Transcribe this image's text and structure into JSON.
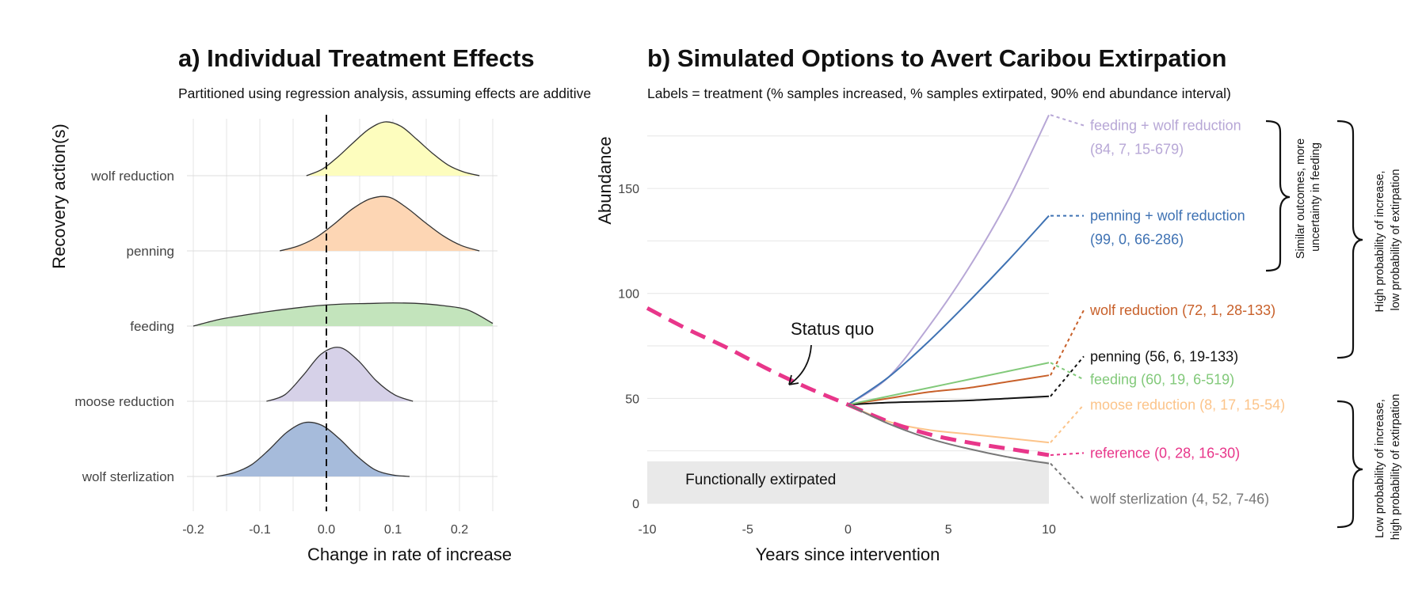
{
  "chart_data": [
    {
      "type": "ridgeline",
      "title": "a) Individual Treatment Effects",
      "subtitle": "Partitioned using regression analysis, assuming effects are additive",
      "xlabel": "Change in rate of increase",
      "ylabel": "Recovery action(s)",
      "xlim": [
        -0.2,
        0.25
      ],
      "xticks": [
        -0.2,
        -0.1,
        0.0,
        0.1,
        0.2
      ],
      "xtick_labels": [
        "-0.2",
        "-0.1",
        "0.0",
        "0.1",
        "0.2"
      ],
      "reference_line": {
        "x": 0,
        "style": "dashed"
      },
      "series": [
        {
          "name": "wolf reduction",
          "color": "#fdfdbe",
          "range": [
            -0.03,
            0.23
          ],
          "peak": 0.1,
          "density": [
            0.0,
            0.12,
            0.35,
            0.62,
            0.87,
            1.0,
            0.92,
            0.68,
            0.42,
            0.2,
            0.07,
            0.0
          ]
        },
        {
          "name": "penning",
          "color": "#fdd6b4",
          "range": [
            -0.07,
            0.23
          ],
          "peak": 0.085,
          "density": [
            0.0,
            0.09,
            0.25,
            0.5,
            0.78,
            0.97,
            1.0,
            0.8,
            0.53,
            0.28,
            0.1,
            0.0
          ]
        },
        {
          "name": "feeding",
          "color": "#c3e4bc",
          "range": [
            -0.2,
            0.25
          ],
          "peak": 0.12,
          "density": [
            0.0,
            0.12,
            0.2,
            0.27,
            0.33,
            0.38,
            0.41,
            0.42,
            0.43,
            0.42,
            0.38,
            0.3,
            0.05
          ]
        },
        {
          "name": "moose reduction",
          "color": "#d6d1e8",
          "range": [
            -0.09,
            0.13
          ],
          "peak": 0.03,
          "density": [
            0.0,
            0.12,
            0.48,
            0.88,
            1.0,
            0.76,
            0.38,
            0.12,
            0.0
          ]
        },
        {
          "name": "wolf sterlization",
          "color": "#a6bbdb",
          "range": [
            -0.165,
            0.125
          ],
          "peak": -0.02,
          "density": [
            0.0,
            0.07,
            0.22,
            0.5,
            0.82,
            1.0,
            0.95,
            0.7,
            0.38,
            0.13,
            0.03,
            0.0
          ]
        }
      ]
    },
    {
      "type": "line",
      "title": "b) Simulated Options to Avert Caribou Extirpation",
      "subtitle": "Labels = treatment (% samples increased, % samples extirpated, 90% end abundance interval)",
      "xlabel": "Years since intervention",
      "ylabel": "Abundance",
      "xlim": [
        -10,
        10
      ],
      "ylim": [
        0,
        190
      ],
      "xticks": [
        -10,
        -5,
        0,
        5,
        10
      ],
      "yticks": [
        0,
        50,
        100,
        150
      ],
      "shaded_region": {
        "label": "Functionally extirpated",
        "y": [
          0,
          20
        ],
        "x": [
          -10,
          10
        ]
      },
      "status_quo": {
        "label": "Status quo",
        "x": [
          -10,
          -8,
          -6,
          -4,
          -2,
          0
        ],
        "y": [
          93,
          83,
          74,
          64,
          55,
          47
        ]
      },
      "series": [
        {
          "name": "feeding + wolf reduction",
          "stats": "(84, 7, 15-679)",
          "color": "#b7a7d6",
          "x": [
            0,
            2,
            4,
            6,
            8,
            10
          ],
          "y": [
            47,
            60,
            84,
            112,
            145,
            185
          ],
          "label_y": 180
        },
        {
          "name": "penning + wolf reduction",
          "stats": "(99, 0, 66-286)",
          "color": "#3f72b3",
          "x": [
            0,
            2,
            4,
            6,
            8,
            10
          ],
          "y": [
            47,
            60,
            77,
            96,
            116,
            137
          ],
          "label_y": 137
        },
        {
          "name": "wolf reduction",
          "stats": "(72, 1, 28-133)",
          "color": "#c8602a",
          "x": [
            0,
            2,
            4,
            6,
            8,
            10
          ],
          "y": [
            47,
            50,
            53,
            55,
            58,
            61
          ],
          "label_y": 92
        },
        {
          "name": "penning",
          "stats": "(56, 6, 19-133)",
          "color": "#111111",
          "x": [
            0,
            2,
            4,
            6,
            8,
            10
          ],
          "y": [
            47,
            48,
            48.5,
            49,
            50,
            51
          ],
          "label_y": 70
        },
        {
          "name": "feeding",
          "stats": "(60, 19, 6-519)",
          "color": "#82c97a",
          "x": [
            0,
            2,
            4,
            6,
            8,
            10
          ],
          "y": [
            47,
            51,
            55,
            59,
            63,
            67
          ],
          "label_y": 59
        },
        {
          "name": "moose reduction",
          "stats": "(8, 17, 15-54)",
          "color": "#fcc48a",
          "x": [
            0,
            2,
            4,
            6,
            8,
            10
          ],
          "y": [
            47,
            39,
            35,
            33,
            31,
            29
          ],
          "label_y": 47
        },
        {
          "name": "reference",
          "stats": "(0, 28, 16-30)",
          "color": "#e8368a",
          "dashed": true,
          "x": [
            0,
            2,
            4,
            6,
            8,
            10
          ],
          "y": [
            47,
            39,
            33,
            29,
            26,
            23
          ],
          "label_y": 24
        },
        {
          "name": "wolf sterlization",
          "stats": "(4, 52, 7-46)",
          "color": "#777777",
          "x": [
            0,
            2,
            4,
            6,
            8,
            10
          ],
          "y": [
            47,
            38,
            31,
            26,
            22,
            19
          ],
          "label_y": 2
        }
      ],
      "brackets": [
        {
          "text_lines": [
            "Similar outcomes, more",
            "uncertainty in feeding"
          ]
        },
        {
          "text_lines": [
            "High probability of increase,",
            "low probability of extirpation"
          ]
        },
        {
          "text_lines": [
            "Low probability of increase,",
            "high probability of extirpation"
          ]
        }
      ]
    }
  ]
}
